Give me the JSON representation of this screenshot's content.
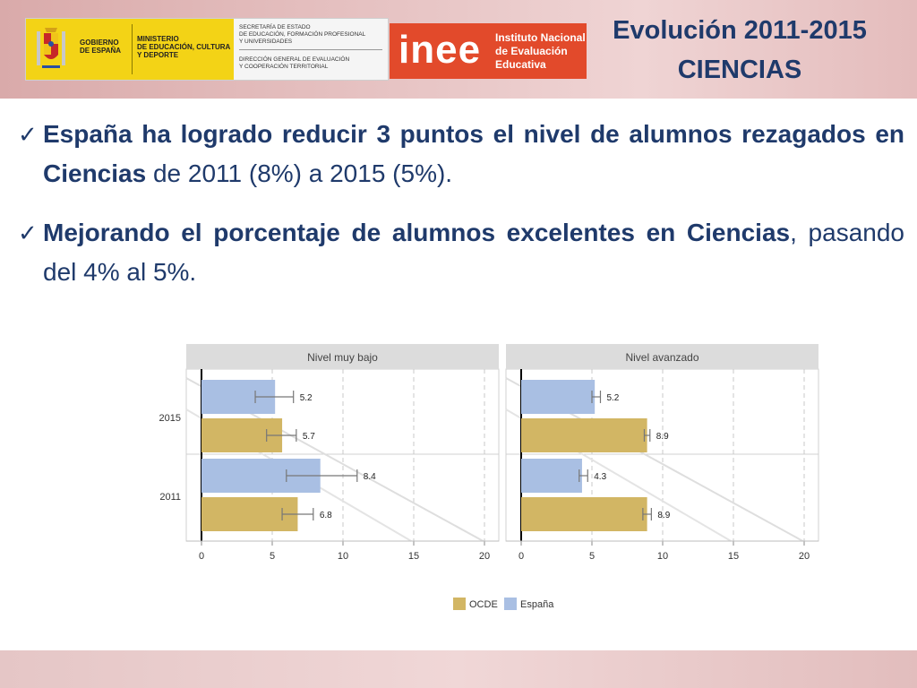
{
  "header": {
    "gov_line1": "GOBIERNO",
    "gov_line2": "DE ESPAÑA",
    "ministry_line1": "MINISTERIO",
    "ministry_line2": "DE EDUCACIÓN, CULTURA",
    "ministry_line3": "Y DEPORTE",
    "secretaria_line1": "SECRETARÍA DE ESTADO",
    "secretaria_line2": "DE EDUCACIÓN, FORMACIÓN PROFESIONAL",
    "secretaria_line3": "Y UNIVERSIDADES",
    "direccion_line1": "DIRECCIÓN GENERAL DE EVALUACIÓN",
    "direccion_line2": "Y COOPERACIÓN TERRITORIAL",
    "inee_word": "inee",
    "inee_line1": "Instituto Nacional",
    "inee_line2": "de Evaluación",
    "inee_line3": "Educativa",
    "title_line1": "Evolución 2011-2015",
    "title_line2": "CIENCIAS"
  },
  "bullets": [
    {
      "bold": "España ha logrado reducir 3 puntos el nivel de alumnos rezagados en Ciencias",
      "normal": " de 2011 (8%) a 2015 (5%)."
    },
    {
      "bold": "Mejorando el porcentaje de alumnos excelentes en Ciencias",
      "normal": ", pasando del 4% al 5%."
    }
  ],
  "colors": {
    "title": "#1f3a6b",
    "ocde": "#d2b664",
    "espana": "#a9bfe3",
    "panel_header": "#dcdcdc"
  },
  "chart_data": {
    "type": "bar",
    "orientation": "horizontal",
    "categories": [
      "2015",
      "2011"
    ],
    "xlim": [
      0,
      20
    ],
    "xticks": [
      0,
      5,
      10,
      15,
      20
    ],
    "grid": true,
    "legend_position": "bottom",
    "legend": [
      "OCDE",
      "España"
    ],
    "panels": [
      {
        "title": "Nivel muy bajo",
        "series": [
          {
            "name": "España",
            "values": [
              5.2,
              8.4
            ],
            "errors": [
              [
                3.8,
                6.5
              ],
              [
                6.0,
                11.0
              ]
            ],
            "labels": [
              "5.2",
              "8.4"
            ]
          },
          {
            "name": "OCDE",
            "values": [
              5.7,
              6.8
            ],
            "errors": [
              [
                4.6,
                6.7
              ],
              [
                5.7,
                7.9
              ]
            ],
            "labels": [
              "5.7",
              "6.8"
            ]
          }
        ]
      },
      {
        "title": "Nivel avanzado",
        "series": [
          {
            "name": "España",
            "values": [
              5.2,
              4.3
            ],
            "errors": [
              [
                5.0,
                5.6
              ],
              [
                4.1,
                4.7
              ]
            ],
            "labels": [
              "5.2",
              "4.3"
            ]
          },
          {
            "name": "OCDE",
            "values": [
              8.9,
              8.9
            ],
            "errors": [
              [
                8.7,
                9.1
              ],
              [
                8.6,
                9.2
              ]
            ],
            "labels": [
              "8.9",
              "8.9"
            ]
          }
        ]
      }
    ]
  }
}
